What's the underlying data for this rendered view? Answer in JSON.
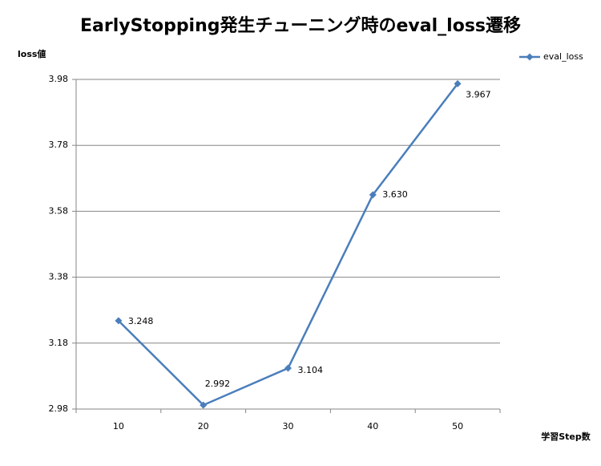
{
  "chart_data": {
    "type": "line",
    "title": "EarlyStopping発生チューニング時のeval_loss遷移",
    "y_label": "loss値",
    "x_label": "学習Step数",
    "categories": [
      "10",
      "20",
      "30",
      "40",
      "50"
    ],
    "series": [
      {
        "name": "eval_loss",
        "color": "#4a7ebb",
        "values": [
          3.248,
          2.992,
          3.104,
          3.63,
          3.967
        ],
        "value_labels": [
          "3.248",
          "2.992",
          "3.104",
          "3.630",
          "3.967"
        ]
      }
    ],
    "ylim": [
      2.98,
      3.98
    ],
    "yticks": [
      2.98,
      3.18,
      3.38,
      3.58,
      3.78,
      3.98
    ],
    "grid": true,
    "legend": "top-right"
  }
}
